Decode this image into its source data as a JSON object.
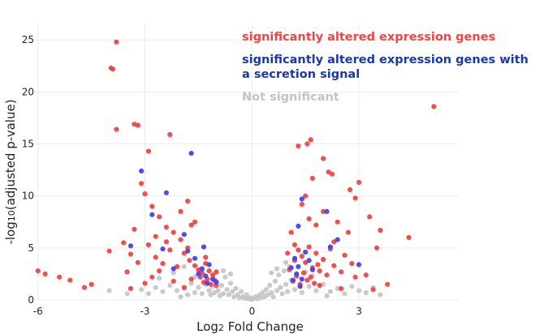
{
  "chart_data": {
    "type": "scatter",
    "title": "",
    "xlabel_main": "Log",
    "xlabel_sub": "2",
    "xlabel_rest": " Fold Change",
    "ylabel_main": "-log",
    "ylabel_sub": "10",
    "ylabel_rest": "(adjusted p-value)",
    "xlim": [
      -6.2,
      5.8
    ],
    "ylim": [
      0,
      26.5
    ],
    "x_ticks": [
      {
        "value": -6,
        "label": "-6"
      },
      {
        "value": -3,
        "label": "-3"
      },
      {
        "value": 0,
        "label": "0"
      },
      {
        "value": 3,
        "label": "3"
      }
    ],
    "y_ticks": [
      {
        "value": 0,
        "label": "0"
      },
      {
        "value": 5,
        "label": "5"
      },
      {
        "value": 10,
        "label": "10"
      },
      {
        "value": 15,
        "label": "15"
      },
      {
        "value": 20,
        "label": "20"
      },
      {
        "value": 25,
        "label": "25"
      }
    ],
    "grid": true,
    "legend_position": "top-right",
    "series": [
      {
        "name": "Not significant",
        "color": "#c4c4c4",
        "points": [
          [
            -3.1,
            1.0
          ],
          [
            -2.9,
            0.6
          ],
          [
            -2.7,
            1.2
          ],
          [
            -2.5,
            0.8
          ],
          [
            -2.3,
            1.4
          ],
          [
            -2.1,
            0.9
          ],
          [
            -1.9,
            1.1
          ],
          [
            -1.8,
            0.5
          ],
          [
            -1.7,
            1.6
          ],
          [
            -1.6,
            0.7
          ],
          [
            -1.5,
            1.2
          ],
          [
            -1.4,
            0.6
          ],
          [
            -1.3,
            1.5
          ],
          [
            -1.2,
            0.9
          ],
          [
            -1.15,
            0.5
          ],
          [
            -1.1,
            1.3
          ],
          [
            -1.05,
            0.7
          ],
          [
            -1.0,
            1.8
          ],
          [
            -0.95,
            0.9
          ],
          [
            -0.9,
            0.4
          ],
          [
            -0.85,
            1.4
          ],
          [
            -0.8,
            0.6
          ],
          [
            -0.75,
            2.2
          ],
          [
            -0.7,
            1.0
          ],
          [
            -0.65,
            0.5
          ],
          [
            -0.6,
            1.6
          ],
          [
            -0.55,
            0.8
          ],
          [
            -0.5,
            0.3
          ],
          [
            -0.45,
            1.1
          ],
          [
            -0.4,
            0.5
          ],
          [
            -0.35,
            0.2
          ],
          [
            -0.3,
            0.8
          ],
          [
            -0.25,
            0.3
          ],
          [
            -0.2,
            0.15
          ],
          [
            -0.15,
            0.5
          ],
          [
            -0.1,
            0.1
          ],
          [
            -0.05,
            0.2
          ],
          [
            0.0,
            0.05
          ],
          [
            0.05,
            0.15
          ],
          [
            0.1,
            0.3
          ],
          [
            0.15,
            0.1
          ],
          [
            0.2,
            0.45
          ],
          [
            0.25,
            0.2
          ],
          [
            0.3,
            0.7
          ],
          [
            0.35,
            0.3
          ],
          [
            0.4,
            1.0
          ],
          [
            0.45,
            0.5
          ],
          [
            0.5,
            1.4
          ],
          [
            0.55,
            0.7
          ],
          [
            0.6,
            0.3
          ],
          [
            0.65,
            1.8
          ],
          [
            0.7,
            0.9
          ],
          [
            0.75,
            2.4
          ],
          [
            0.8,
            1.2
          ],
          [
            0.85,
            0.6
          ],
          [
            0.9,
            2.8
          ],
          [
            0.95,
            1.5
          ],
          [
            1.0,
            0.8
          ],
          [
            1.05,
            3.2
          ],
          [
            1.1,
            1.9
          ],
          [
            -1.9,
            3.2
          ],
          [
            -2.2,
            2.6
          ],
          [
            -2.6,
            2.1
          ],
          [
            -0.8,
            2.8
          ],
          [
            -1.1,
            2.4
          ],
          [
            1.2,
            1.0
          ],
          [
            1.4,
            0.7
          ],
          [
            1.6,
            1.3
          ],
          [
            1.8,
            0.9
          ],
          [
            2.0,
            1.5
          ],
          [
            2.2,
            0.8
          ],
          [
            2.4,
            1.1
          ],
          [
            2.6,
            0.6
          ],
          [
            2.8,
            1.3
          ],
          [
            3.0,
            0.9
          ],
          [
            3.2,
            0.7
          ],
          [
            3.4,
            1.2
          ],
          [
            3.6,
            0.5
          ],
          [
            0.95,
            3.6
          ],
          [
            0.7,
            3.0
          ],
          [
            -3.5,
            0.6
          ],
          [
            -4.0,
            0.9
          ],
          [
            -1.4,
            2.9
          ],
          [
            1.5,
            2.7
          ],
          [
            -0.6,
            2.5
          ],
          [
            0.55,
            2.6
          ],
          [
            -2.0,
            0.3
          ],
          [
            2.1,
            0.4
          ],
          [
            -1.6,
            2.2
          ],
          [
            1.7,
            2.3
          ]
        ]
      },
      {
        "name": "significantly altered expression genes",
        "color": "#f24444",
        "points": [
          [
            -3.8,
            24.8
          ],
          [
            -3.95,
            22.3
          ],
          [
            -3.9,
            22.2
          ],
          [
            -3.8,
            16.4
          ],
          [
            -3.3,
            16.9
          ],
          [
            -3.2,
            16.8
          ],
          [
            -2.3,
            15.9
          ],
          [
            -2.9,
            14.3
          ],
          [
            -1.6,
            7.5
          ],
          [
            -3.1,
            11.2
          ],
          [
            -3.0,
            10.2
          ],
          [
            -2.8,
            9.0
          ],
          [
            -2.6,
            8.0
          ],
          [
            -2.4,
            7.0
          ],
          [
            -2.2,
            6.5
          ],
          [
            -2.0,
            8.5
          ],
          [
            -1.8,
            9.5
          ],
          [
            -1.7,
            7.2
          ],
          [
            -4.0,
            4.7
          ],
          [
            -3.6,
            5.5
          ],
          [
            -3.4,
            4.4
          ],
          [
            -3.2,
            3.6
          ],
          [
            -2.9,
            5.3
          ],
          [
            -2.7,
            4.1
          ],
          [
            -2.5,
            3.5
          ],
          [
            -2.3,
            4.8
          ],
          [
            -2.1,
            3.2
          ],
          [
            -1.9,
            4.5
          ],
          [
            -1.75,
            3.8
          ],
          [
            -1.6,
            3.3
          ],
          [
            -1.5,
            2.9
          ],
          [
            -1.45,
            2.2
          ],
          [
            -1.4,
            2.6
          ],
          [
            -1.35,
            1.7
          ],
          [
            -1.3,
            3.5
          ],
          [
            -1.25,
            2.0
          ],
          [
            -1.2,
            2.8
          ],
          [
            -1.15,
            1.5
          ],
          [
            -1.1,
            2.4
          ],
          [
            -1.05,
            1.9
          ],
          [
            -1.0,
            2.7
          ],
          [
            -1.0,
            1.4
          ],
          [
            -2.6,
            2.8
          ],
          [
            -2.8,
            2.2
          ],
          [
            -3.0,
            1.6
          ],
          [
            -3.4,
            1.1
          ],
          [
            -4.5,
            1.5
          ],
          [
            -5.4,
            2.2
          ],
          [
            -5.8,
            2.5
          ],
          [
            -5.1,
            1.9
          ],
          [
            -4.7,
            1.2
          ],
          [
            -6.0,
            2.8
          ],
          [
            -3.3,
            6.8
          ],
          [
            -2.0,
            5.8
          ],
          [
            -1.8,
            5.0
          ],
          [
            -2.4,
            5.6
          ],
          [
            -3.5,
            2.7
          ],
          [
            -1.7,
            2.0
          ],
          [
            -2.2,
            1.8
          ],
          [
            -1.9,
            1.2
          ],
          [
            -1.3,
            4.1
          ],
          [
            -2.7,
            6.1
          ],
          [
            5.1,
            18.6
          ],
          [
            1.65,
            15.4
          ],
          [
            1.55,
            15.0
          ],
          [
            1.3,
            14.8
          ],
          [
            2.0,
            13.6
          ],
          [
            2.15,
            12.3
          ],
          [
            2.25,
            12.1
          ],
          [
            3.0,
            11.3
          ],
          [
            2.75,
            10.6
          ],
          [
            2.9,
            9.8
          ],
          [
            1.7,
            11.7
          ],
          [
            1.5,
            10.0
          ],
          [
            1.4,
            9.2
          ],
          [
            1.6,
            7.8
          ],
          [
            1.8,
            7.2
          ],
          [
            2.0,
            8.5
          ],
          [
            2.4,
            7.5
          ],
          [
            2.7,
            6.5
          ],
          [
            3.3,
            8.0
          ],
          [
            3.6,
            6.7
          ],
          [
            4.4,
            6.0
          ],
          [
            1.1,
            6.5
          ],
          [
            1.2,
            5.3
          ],
          [
            1.3,
            4.8
          ],
          [
            1.4,
            4.2
          ],
          [
            1.5,
            3.6
          ],
          [
            1.6,
            5.1
          ],
          [
            1.7,
            3.1
          ],
          [
            1.8,
            4.5
          ],
          [
            1.9,
            2.8
          ],
          [
            2.0,
            3.9
          ],
          [
            2.1,
            2.4
          ],
          [
            2.2,
            4.9
          ],
          [
            2.3,
            3.3
          ],
          [
            2.5,
            2.7
          ],
          [
            2.6,
            4.3
          ],
          [
            2.8,
            3.5
          ],
          [
            2.9,
            2.2
          ],
          [
            3.2,
            2.4
          ],
          [
            1.05,
            2.9
          ],
          [
            1.15,
            1.8
          ],
          [
            1.25,
            2.3
          ],
          [
            1.35,
            1.5
          ],
          [
            1.45,
            2.6
          ],
          [
            1.55,
            1.9
          ],
          [
            1.65,
            2.2
          ],
          [
            1.75,
            1.6
          ],
          [
            1.85,
            3.4
          ],
          [
            3.8,
            1.5
          ],
          [
            3.4,
            1.0
          ],
          [
            2.5,
            1.1
          ],
          [
            1.9,
            1.4
          ],
          [
            2.3,
            5.6
          ],
          [
            1.2,
            3.8
          ],
          [
            3.5,
            5.0
          ],
          [
            1.0,
            4.5
          ]
        ]
      },
      {
        "name": "significantly altered expression genes with a secretion signal",
        "color": "#4444ee",
        "points": [
          [
            -1.7,
            14.1
          ],
          [
            -3.1,
            12.4
          ],
          [
            -2.4,
            10.3
          ],
          [
            -2.8,
            8.2
          ],
          [
            -3.4,
            5.2
          ],
          [
            -2.5,
            4.9
          ],
          [
            -1.9,
            6.3
          ],
          [
            -1.6,
            4.0
          ],
          [
            -1.4,
            3.0
          ],
          [
            -1.3,
            2.3
          ],
          [
            -1.25,
            1.6
          ],
          [
            -1.2,
            3.4
          ],
          [
            -1.1,
            2.0
          ],
          [
            -1.5,
            2.5
          ],
          [
            -1.35,
            5.1
          ],
          [
            -2.2,
            3.0
          ],
          [
            -1.8,
            4.7
          ],
          [
            -1.0,
            1.7
          ],
          [
            2.1,
            8.5
          ],
          [
            1.4,
            9.7
          ],
          [
            1.3,
            7.1
          ],
          [
            1.2,
            4.0
          ],
          [
            1.3,
            3.2
          ],
          [
            1.25,
            2.5
          ],
          [
            1.4,
            2.0
          ],
          [
            1.5,
            4.6
          ],
          [
            1.6,
            3.8
          ],
          [
            1.1,
            3.1
          ],
          [
            1.35,
            1.3
          ],
          [
            2.2,
            5.1
          ],
          [
            3.0,
            3.4
          ],
          [
            2.4,
            5.8
          ],
          [
            1.15,
            1.9
          ],
          [
            1.7,
            2.9
          ]
        ]
      }
    ]
  }
}
